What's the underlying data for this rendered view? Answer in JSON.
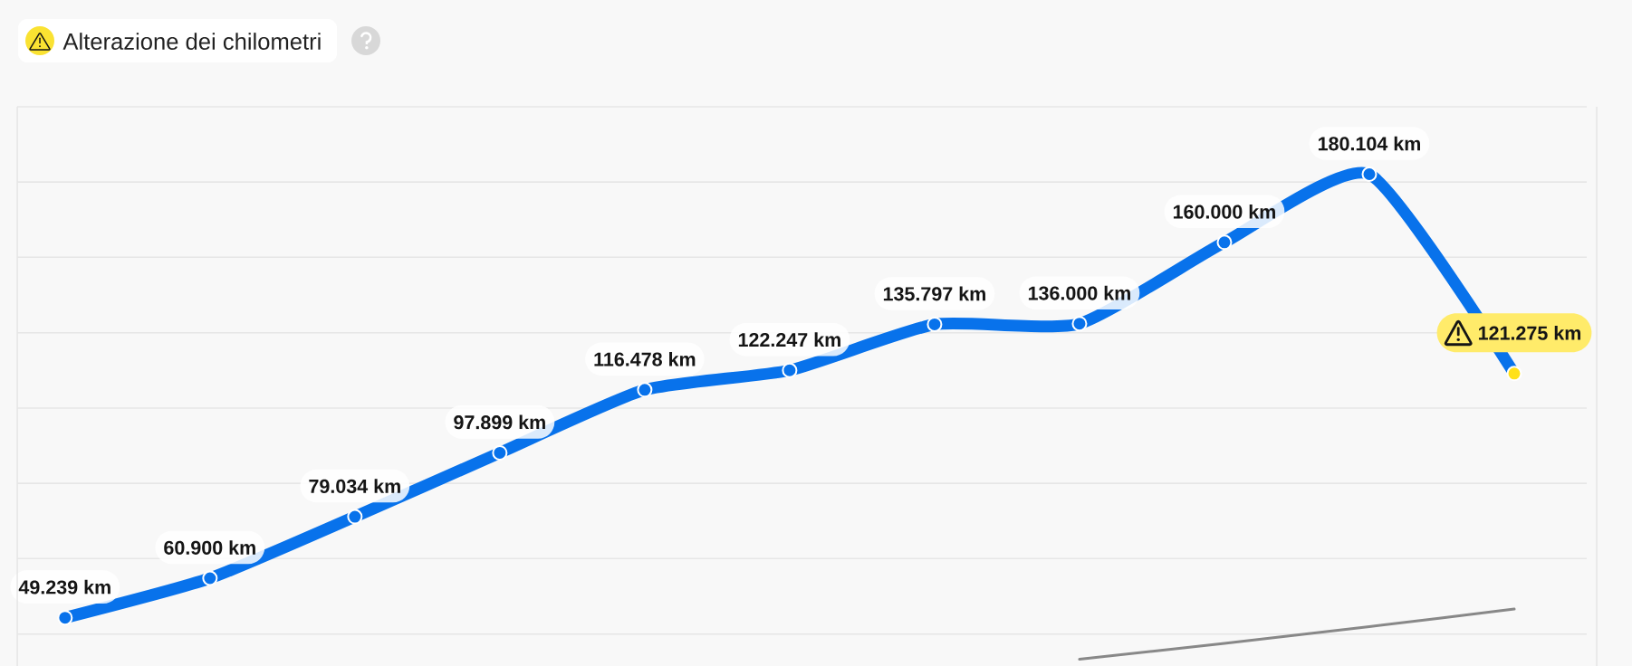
{
  "chart_data": {
    "type": "line",
    "title": "Alterazione dei chilometri",
    "categories": [
      null,
      null,
      null,
      null,
      null,
      null,
      null,
      null,
      null,
      null,
      null
    ],
    "series": [
      {
        "color": "#0872eb",
        "colors": [
          "#0872eb",
          "#0872eb",
          "#0872eb",
          "#0872eb",
          "#0872eb",
          "#0872eb",
          "#0872eb",
          "#0872eb",
          "#0872eb",
          "#0872eb",
          "#ffe11a"
        ],
        "values": [
          49239,
          60900,
          79034,
          97899,
          116478,
          122247,
          135797,
          136000,
          160000,
          180104,
          121275
        ],
        "value_labels": [
          "49.239 km",
          "60.900 km",
          "79.034 km",
          "97.899 km",
          "116.478 km",
          "122.247 km",
          "135.797 km",
          "136.000 km",
          "160.000 km",
          "180.104 km",
          "121.275 km"
        ]
      },
      {
        "color": "#888888",
        "marker": "none",
        "values": [
          null,
          null,
          null,
          null,
          null,
          null,
          null,
          37000,
          41700,
          46600,
          51800
        ]
      }
    ],
    "ylim": [
      35000,
      200000
    ],
    "yticks": [
      44400,
      66700,
      88900,
      111100,
      133300,
      155600,
      177800,
      200000
    ],
    "grid": "y",
    "tick_labels": false,
    "marker": "circle"
  }
}
